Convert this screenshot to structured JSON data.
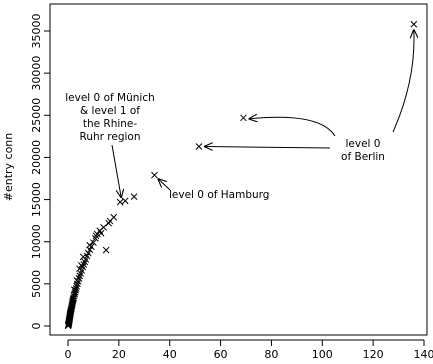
{
  "chart_data": {
    "type": "scatter",
    "title": "",
    "xlabel": "",
    "ylabel": "#entry conn",
    "xlim": [
      0,
      140
    ],
    "ylim": [
      0,
      36000
    ],
    "grid": false,
    "marker": "x",
    "x_ticks": [
      "0",
      "20",
      "40",
      "60",
      "80",
      "100",
      "120",
      "140"
    ],
    "y_ticks": [
      "0",
      "5000",
      "10000",
      "15000",
      "20000",
      "25000",
      "30000",
      "35000"
    ],
    "series": [
      {
        "points": [
          [
            0.05,
            20
          ],
          [
            0.1,
            60
          ],
          [
            0.15,
            110
          ],
          [
            0.2,
            180
          ],
          [
            0.25,
            250
          ],
          [
            0.3,
            330
          ],
          [
            0.35,
            420
          ],
          [
            0.4,
            520
          ],
          [
            0.45,
            600
          ],
          [
            0.5,
            700
          ],
          [
            0.55,
            790
          ],
          [
            0.6,
            880
          ],
          [
            0.65,
            980
          ],
          [
            0.7,
            1080
          ],
          [
            0.75,
            1180
          ],
          [
            0.8,
            1270
          ],
          [
            0.85,
            1360
          ],
          [
            0.9,
            1450
          ],
          [
            0.95,
            1540
          ],
          [
            1.0,
            1620
          ],
          [
            1.1,
            1750
          ],
          [
            1.2,
            1900
          ],
          [
            1.3,
            2050
          ],
          [
            1.4,
            2200
          ],
          [
            1.5,
            2350
          ],
          [
            1.6,
            2500
          ],
          [
            1.7,
            2650
          ],
          [
            1.8,
            2800
          ],
          [
            1.9,
            2950
          ],
          [
            2.0,
            3100
          ],
          [
            2.1,
            3200
          ],
          [
            2.2,
            3350
          ],
          [
            2.4,
            3550
          ],
          [
            2.6,
            3800
          ],
          [
            2.8,
            4000
          ],
          [
            3.0,
            4250
          ],
          [
            3.2,
            4450
          ],
          [
            3.4,
            4700
          ],
          [
            3.7,
            5000
          ],
          [
            4.0,
            5300
          ],
          [
            4.3,
            5650
          ],
          [
            4.6,
            5950
          ],
          [
            5.0,
            6250
          ],
          [
            5.4,
            6600
          ],
          [
            5.8,
            7000
          ],
          [
            6.2,
            7300
          ],
          [
            6.6,
            7600
          ],
          [
            7.0,
            7900
          ],
          [
            7.5,
            8300
          ],
          [
            8.0,
            8650
          ],
          [
            8.6,
            9050
          ],
          [
            9.2,
            9400
          ],
          [
            10.0,
            9900
          ],
          [
            10.8,
            10400
          ],
          [
            11.5,
            10900
          ],
          [
            12.5,
            11300
          ],
          [
            14.0,
            11700
          ],
          [
            16.0,
            12200
          ],
          [
            16.5,
            12450
          ],
          [
            18.0,
            12900
          ],
          [
            15.0,
            9000
          ],
          [
            4.5,
            6800
          ],
          [
            6.0,
            8200
          ],
          [
            8.5,
            9600
          ],
          [
            11.0,
            10700
          ],
          [
            13.0,
            11000
          ],
          [
            5.2,
            7200
          ],
          [
            3.5,
            5400
          ],
          [
            2.5,
            4300
          ],
          [
            20.5,
            14700
          ],
          [
            22.5,
            14850
          ],
          [
            26.0,
            15350
          ],
          [
            34.0,
            17900
          ],
          [
            51.5,
            21300
          ],
          [
            69.0,
            24700
          ],
          [
            136.0,
            35800
          ]
        ]
      }
    ],
    "annotations": [
      {
        "lines": [
          "level 0 of Münich",
          "& level 1 of",
          "the Rhine-",
          "Ruhr region"
        ],
        "point": [
          20.5,
          14700
        ]
      },
      {
        "lines": [
          "level 0 of Hamburg"
        ],
        "point": [
          34.0,
          17900
        ]
      },
      {
        "lines": [
          "level 0",
          "of Berlin"
        ],
        "points": [
          [
            51.5,
            21300
          ],
          [
            69.0,
            24700
          ],
          [
            136.0,
            35800
          ]
        ]
      }
    ]
  }
}
